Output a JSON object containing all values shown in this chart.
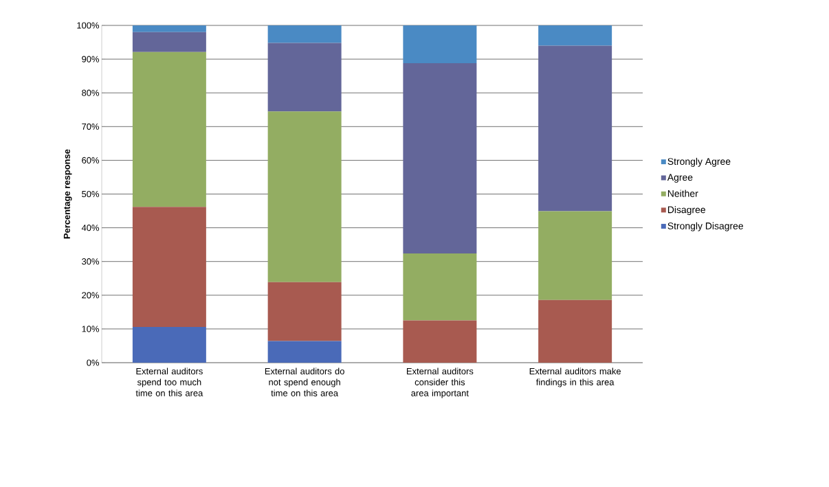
{
  "chart_data": {
    "type": "bar",
    "stacked": true,
    "ylabel": "Percentage response",
    "categories": [
      "External auditors spend too much time on this area",
      "External auditors do not spend enough time on this area",
      "External auditors consider this area important",
      "External auditors make findings in this area"
    ],
    "series": [
      {
        "name": "Strongly Disagree",
        "color": "#4a6ab8",
        "values": [
          10.6,
          6.4,
          0,
          0
        ]
      },
      {
        "name": "Disagree",
        "color": "#a85a50",
        "values": [
          35.6,
          17.5,
          12.5,
          18.6
        ]
      },
      {
        "name": "Neither",
        "color": "#93ad62",
        "values": [
          45.9,
          50.6,
          19.9,
          26.3
        ]
      },
      {
        "name": "Agree",
        "color": "#636699",
        "values": [
          5.9,
          20.3,
          56.4,
          49.1
        ]
      },
      {
        "name": "Strongly Agree",
        "color": "#4a8ac4",
        "values": [
          2.0,
          5.2,
          11.2,
          6.0
        ]
      }
    ],
    "ylim": [
      0,
      100
    ],
    "yticks": [
      {
        "value": 0,
        "label": "0%"
      },
      {
        "value": 10,
        "label": "10%"
      },
      {
        "value": 20,
        "label": "20%"
      },
      {
        "value": 30,
        "label": "30%"
      },
      {
        "value": 40,
        "label": "40%"
      },
      {
        "value": 50,
        "label": "50%"
      },
      {
        "value": 60,
        "label": "60%"
      },
      {
        "value": 70,
        "label": "70%"
      },
      {
        "value": 80,
        "label": "80%"
      },
      {
        "value": 90,
        "label": "90%"
      },
      {
        "value": 100,
        "label": "100%"
      }
    ],
    "grid": "y",
    "legend": "right"
  }
}
